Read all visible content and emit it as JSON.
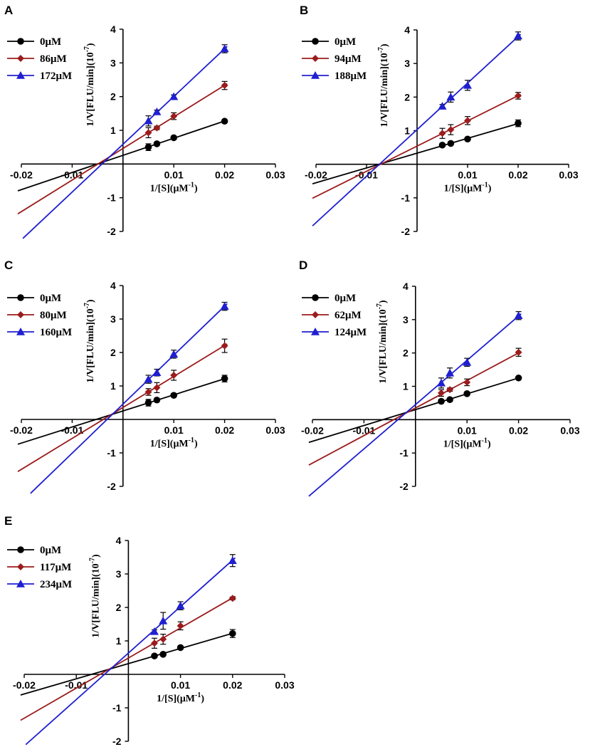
{
  "colors": {
    "c0": "#000000",
    "c1": "#9b1c1c",
    "c2": "#1f1fd1"
  },
  "chart_data": [
    {
      "panel": "A",
      "type": "scatter",
      "xlabel": "1/[S](μM",
      "xlabel_sup": "-1",
      "xlabel_end": ")",
      "ylabel": "1/V[FLU/min](10",
      "ylabel_sup": "-7",
      "ylabel_end": ")",
      "xlim": [
        -0.02,
        0.03
      ],
      "ylim": [
        -2,
        4
      ],
      "xticks": [
        -0.02,
        -0.01,
        0.01,
        0.02,
        0.03
      ],
      "xtick_labels": [
        "-0.02",
        "-0.01",
        "0.01",
        "0.02",
        "0.03"
      ],
      "yticks": [
        -2,
        -1,
        1,
        2,
        3,
        4
      ],
      "ytick_labels": [
        "-2",
        "-1",
        "1",
        "2",
        "3",
        "4"
      ],
      "series": [
        {
          "name": "0μM",
          "marker": "circle",
          "color_key": "c0",
          "x": [
            0.005,
            0.00667,
            0.01,
            0.02
          ],
          "y": [
            0.5,
            0.6,
            0.78,
            1.27
          ],
          "err": [
            0.1,
            0.05,
            0.05,
            0.04
          ],
          "fit_x": [
            -0.0207,
            0.0205
          ]
        },
        {
          "name": "86μM",
          "marker": "diamond",
          "color_key": "c1",
          "x": [
            0.005,
            0.00667,
            0.01,
            0.02
          ],
          "y": [
            0.93,
            1.07,
            1.42,
            2.33
          ],
          "err": [
            0.15,
            0.05,
            0.1,
            0.12
          ],
          "fit_x": [
            -0.0207,
            0.0205
          ]
        },
        {
          "name": "172μM",
          "marker": "triangle",
          "color_key": "c2",
          "x": [
            0.005,
            0.00667,
            0.01,
            0.02
          ],
          "y": [
            1.28,
            1.55,
            2.0,
            3.42
          ],
          "err": [
            0.15,
            0.05,
            0.05,
            0.12
          ],
          "fit_x": [
            -0.0197,
            0.0205
          ]
        }
      ]
    },
    {
      "panel": "B",
      "type": "scatter",
      "xlabel": "1/[S](μM",
      "xlabel_sup": "-1",
      "xlabel_end": ")",
      "ylabel": "1/V[FLU/min](10",
      "ylabel_sup": "-7",
      "ylabel_end": ")",
      "xlim": [
        -0.02,
        0.03
      ],
      "ylim": [
        -2,
        4
      ],
      "xticks": [
        -0.02,
        -0.01,
        0.01,
        0.02,
        0.03
      ],
      "xtick_labels": [
        "-0.02",
        "-0.01",
        "0.01",
        "0.02",
        "0.03"
      ],
      "yticks": [
        -2,
        -1,
        1,
        2,
        3,
        4
      ],
      "ytick_labels": [
        "-2",
        "-1",
        "1",
        "2",
        "3",
        "4"
      ],
      "series": [
        {
          "name": "0μM",
          "marker": "circle",
          "color_key": "c0",
          "x": [
            0.005,
            0.00667,
            0.01,
            0.02
          ],
          "y": [
            0.57,
            0.62,
            0.75,
            1.22
          ],
          "err": [
            0.05,
            0.05,
            0.05,
            0.1
          ],
          "fit_x": [
            -0.0207,
            0.0205
          ]
        },
        {
          "name": "94μM",
          "marker": "diamond",
          "color_key": "c1",
          "x": [
            0.005,
            0.00667,
            0.01,
            0.02
          ],
          "y": [
            0.92,
            1.03,
            1.3,
            2.04
          ],
          "err": [
            0.15,
            0.15,
            0.12,
            0.1
          ],
          "fit_x": [
            -0.0207,
            0.0205
          ]
        },
        {
          "name": "188μM",
          "marker": "triangle",
          "color_key": "c2",
          "x": [
            0.005,
            0.00667,
            0.01,
            0.02
          ],
          "y": [
            1.73,
            2.0,
            2.35,
            3.82
          ],
          "err": [
            0.05,
            0.15,
            0.15,
            0.12
          ],
          "fit_x": [
            -0.0207,
            0.0205
          ]
        }
      ]
    },
    {
      "panel": "C",
      "type": "scatter",
      "xlabel": "1/[S](μM",
      "xlabel_sup": "-1",
      "xlabel_end": ")",
      "ylabel": "1/V[FLU/min](10",
      "ylabel_sup": "-7",
      "ylabel_end": ")",
      "xlim": [
        -0.02,
        0.03
      ],
      "ylim": [
        -2,
        4
      ],
      "xticks": [
        -0.02,
        -0.01,
        0.01,
        0.02,
        0.03
      ],
      "xtick_labels": [
        "-0.02",
        "-0.01",
        "0.01",
        "0.02",
        "0.03"
      ],
      "yticks": [
        -2,
        -1,
        1,
        2,
        3,
        4
      ],
      "ytick_labels": [
        "-2",
        "-1",
        "1",
        "2",
        "3",
        "4"
      ],
      "series": [
        {
          "name": "0μM",
          "marker": "circle",
          "color_key": "c0",
          "x": [
            0.005,
            0.00667,
            0.01,
            0.02
          ],
          "y": [
            0.5,
            0.58,
            0.72,
            1.22
          ],
          "err": [
            0.1,
            0.05,
            0.05,
            0.1
          ],
          "fit_x": [
            -0.0207,
            0.0205
          ]
        },
        {
          "name": "80μM",
          "marker": "diamond",
          "color_key": "c1",
          "x": [
            0.005,
            0.00667,
            0.01,
            0.02
          ],
          "y": [
            0.82,
            0.95,
            1.32,
            2.2
          ],
          "err": [
            0.1,
            0.15,
            0.15,
            0.2
          ],
          "fit_x": [
            -0.0207,
            0.0205
          ]
        },
        {
          "name": "160μM",
          "marker": "triangle",
          "color_key": "c2",
          "x": [
            0.005,
            0.00667,
            0.01,
            0.02
          ],
          "y": [
            1.2,
            1.4,
            1.95,
            3.38
          ],
          "err": [
            0.12,
            0.1,
            0.12,
            0.12
          ],
          "fit_x": [
            -0.0182,
            0.0205
          ]
        }
      ]
    },
    {
      "panel": "D",
      "type": "scatter",
      "xlabel": "1/[S](μM",
      "xlabel_sup": "-1",
      "xlabel_end": ")",
      "ylabel": "1/V[FLU/min](10",
      "ylabel_sup": "-7",
      "ylabel_end": ")",
      "xlim": [
        -0.02,
        0.03
      ],
      "ylim": [
        -2,
        4
      ],
      "xticks": [
        -0.02,
        -0.01,
        0.01,
        0.02,
        0.03
      ],
      "xtick_labels": [
        "-0.02",
        "-0.01",
        "0.01",
        "0.02",
        "0.03"
      ],
      "yticks": [
        -2,
        -1,
        1,
        2,
        3,
        4
      ],
      "ytick_labels": [
        "-2",
        "-1",
        "1",
        "2",
        "3",
        "4"
      ],
      "series": [
        {
          "name": "0μM",
          "marker": "circle",
          "color_key": "c0",
          "x": [
            0.005,
            0.00667,
            0.01,
            0.02
          ],
          "y": [
            0.55,
            0.6,
            0.78,
            1.25
          ],
          "err": [
            0.05,
            0.05,
            0.05,
            0.04
          ],
          "fit_x": [
            -0.0207,
            0.0205
          ]
        },
        {
          "name": "62μM",
          "marker": "diamond",
          "color_key": "c1",
          "x": [
            0.005,
            0.00667,
            0.01,
            0.02
          ],
          "y": [
            0.8,
            0.9,
            1.12,
            2.02
          ],
          "err": [
            0.1,
            0.05,
            0.1,
            0.12
          ],
          "fit_x": [
            -0.0207,
            0.0205
          ]
        },
        {
          "name": "124μM",
          "marker": "triangle",
          "color_key": "c2",
          "x": [
            0.005,
            0.00667,
            0.01,
            0.02
          ],
          "y": [
            1.1,
            1.4,
            1.72,
            3.12
          ],
          "err": [
            0.15,
            0.15,
            0.12,
            0.12
          ],
          "fit_x": [
            -0.0207,
            0.0205
          ]
        }
      ]
    },
    {
      "panel": "E",
      "type": "scatter",
      "xlabel": "1/[S](μM",
      "xlabel_sup": "-1",
      "xlabel_end": ")",
      "ylabel": "1/V[FLU/min](10",
      "ylabel_sup": "-7",
      "ylabel_end": ")",
      "xlim": [
        -0.02,
        0.03
      ],
      "ylim": [
        -2,
        4
      ],
      "xticks": [
        -0.02,
        -0.01,
        0.01,
        0.02,
        0.03
      ],
      "xtick_labels": [
        "-0.02",
        "-0.01",
        "0.01",
        "0.02",
        "0.03"
      ],
      "yticks": [
        -2,
        -1,
        1,
        2,
        3,
        4
      ],
      "ytick_labels": [
        "-2",
        "-1",
        "1",
        "2",
        "3",
        "4"
      ],
      "series": [
        {
          "name": "0μM",
          "marker": "circle",
          "color_key": "c0",
          "x": [
            0.005,
            0.00667,
            0.01,
            0.02
          ],
          "y": [
            0.55,
            0.6,
            0.8,
            1.22
          ],
          "err": [
            0.05,
            0.05,
            0.05,
            0.12
          ],
          "fit_x": [
            -0.0207,
            0.0205
          ]
        },
        {
          "name": "117μM",
          "marker": "diamond",
          "color_key": "c1",
          "x": [
            0.005,
            0.00667,
            0.01,
            0.02
          ],
          "y": [
            0.93,
            1.05,
            1.45,
            2.27
          ],
          "err": [
            0.15,
            0.15,
            0.12,
            0.04
          ],
          "fit_x": [
            -0.0207,
            0.0205
          ]
        },
        {
          "name": "234μM",
          "marker": "triangle",
          "color_key": "c2",
          "x": [
            0.005,
            0.00667,
            0.01,
            0.02
          ],
          "y": [
            1.28,
            1.6,
            2.05,
            3.4
          ],
          "err": [
            0.05,
            0.25,
            0.12,
            0.18
          ],
          "fit_x": [
            -0.0197,
            0.0205
          ]
        }
      ]
    }
  ]
}
